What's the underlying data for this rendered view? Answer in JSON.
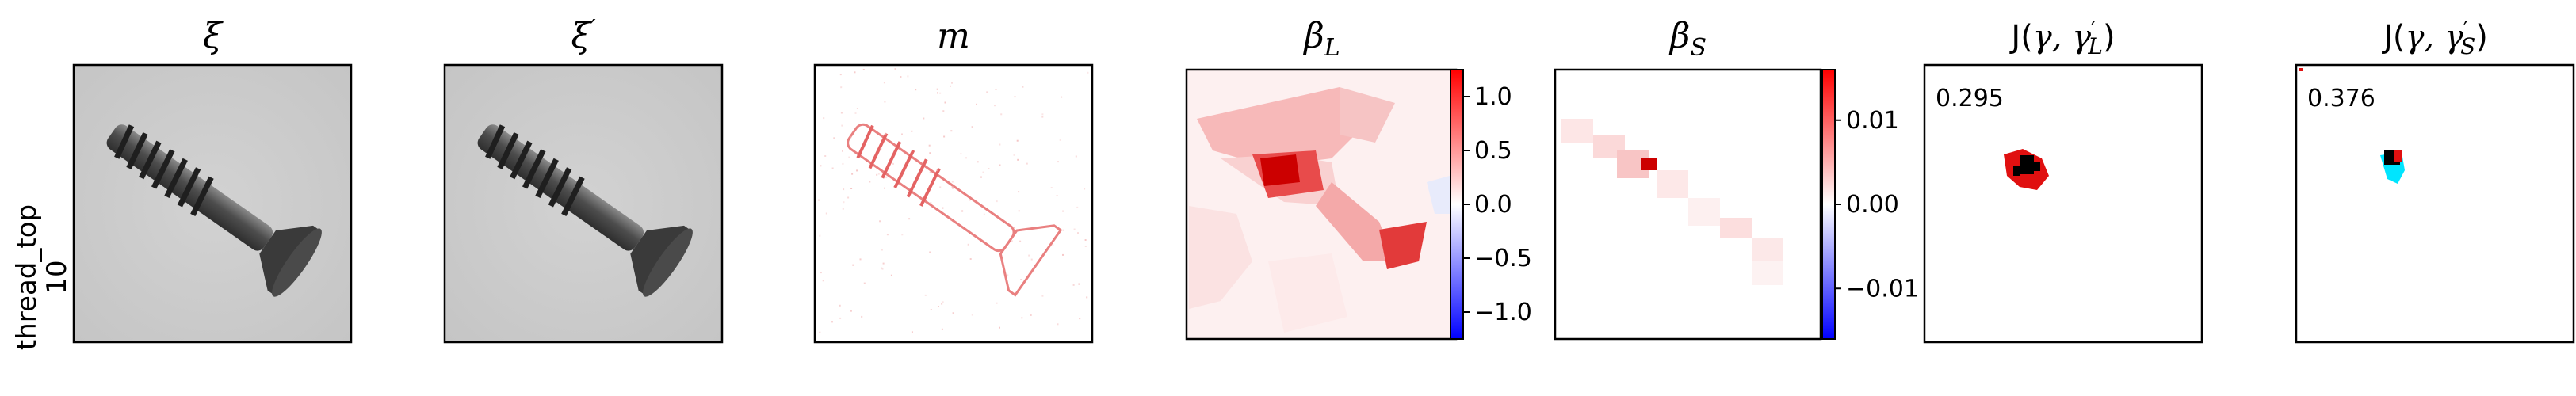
{
  "row_label": {
    "line1": "thread_top",
    "line2": "10"
  },
  "panels": [
    {
      "name": "panel-xi",
      "title_main": "ξ",
      "title_sup": "",
      "title_sub": ""
    },
    {
      "name": "panel-xi-prime",
      "title_main": "ξ",
      "title_sup": "′",
      "title_sub": ""
    },
    {
      "name": "panel-m",
      "title_main": "m",
      "title_sup": "",
      "title_sub": ""
    },
    {
      "name": "panel-beta-l",
      "title_main": "β",
      "title_sup": "",
      "title_sub": "L"
    },
    {
      "name": "panel-beta-s",
      "title_main": "β",
      "title_sup": "",
      "title_sub": "S"
    },
    {
      "name": "panel-j-l",
      "title_prefix": "J(",
      "title_gamma": "γ, ",
      "title_gamma2": "γ",
      "title_sup": "′",
      "title_sub": "L",
      "title_suffix": ")"
    },
    {
      "name": "panel-j-s",
      "title_prefix": "J(",
      "title_gamma": "γ, ",
      "title_gamma2": "γ",
      "title_sup": "′",
      "title_sub": "S",
      "title_suffix": ")"
    }
  ],
  "colorbar_l": {
    "ticks": [
      "1.0",
      "0.5",
      "0.0",
      "−0.5",
      "−1.0"
    ],
    "values": [
      1.0,
      0.5,
      0.0,
      -0.5,
      -1.0
    ],
    "min": -1.25,
    "max": 1.25
  },
  "colorbar_s": {
    "ticks": [
      "0.01",
      "0.00",
      "−0.01"
    ],
    "values": [
      0.01,
      0.0,
      -0.01
    ],
    "min": -0.016,
    "max": 0.016
  },
  "scores": {
    "j_l": "0.295",
    "j_s": "0.376"
  },
  "colors": {
    "red": "#d9181e",
    "blue": "#1a1ae6",
    "cyan": "#00e5ff",
    "black": "#000000"
  }
}
